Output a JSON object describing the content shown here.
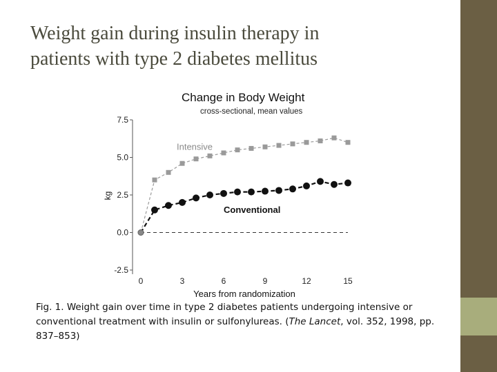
{
  "slide": {
    "title_line1": "Weight gain during insulin therapy in",
    "title_line2": "patients with type 2 diabetes mellitus",
    "caption_part1": "Fig. 1. Weight gain over time in type 2 diabetes patients undergoing intensive or conventional treatment with insulin or sulfonylureas. (",
    "caption_journal": "The Lancet",
    "caption_part2": ", vol. 352, 1998, pp. 837–853)",
    "colors": {
      "title_text": "#4a4a3c",
      "right_bar": "#6b5f44",
      "right_accent": "#a8ad7c"
    }
  },
  "chart_data": {
    "type": "line",
    "title": "Change in Body Weight",
    "subtitle": "cross-sectional, mean values",
    "xlabel": "Years from randomization",
    "ylabel": "kg",
    "xlim": [
      0,
      15
    ],
    "ylim": [
      -2.5,
      7.5
    ],
    "x_ticks": [
      0,
      3,
      6,
      9,
      12,
      15
    ],
    "y_ticks": [
      -2.5,
      0.0,
      2.5,
      5.0,
      7.5
    ],
    "y_tick_labels": [
      "-2.5",
      "0.0",
      "2.5",
      "5.0",
      "7.5"
    ],
    "reference_line_y": 0,
    "series": [
      {
        "name": "Intensive",
        "color": "#9a9a9a",
        "marker": "square",
        "x": [
          0,
          1,
          2,
          3,
          4,
          5,
          6,
          7,
          8,
          9,
          10,
          11,
          12,
          13,
          14,
          15
        ],
        "y": [
          0.0,
          3.5,
          4.0,
          4.6,
          4.9,
          5.1,
          5.3,
          5.5,
          5.6,
          5.7,
          5.8,
          5.9,
          6.0,
          6.1,
          6.3,
          6.0
        ]
      },
      {
        "name": "Conventional",
        "color": "#111111",
        "marker": "circle",
        "x": [
          0,
          1,
          2,
          3,
          4,
          5,
          6,
          7,
          8,
          9,
          10,
          11,
          12,
          13,
          14,
          15
        ],
        "y": [
          0.0,
          1.5,
          1.8,
          2.0,
          2.3,
          2.5,
          2.6,
          2.7,
          2.7,
          2.75,
          2.8,
          2.9,
          3.1,
          3.4,
          3.2,
          3.3
        ]
      }
    ]
  }
}
